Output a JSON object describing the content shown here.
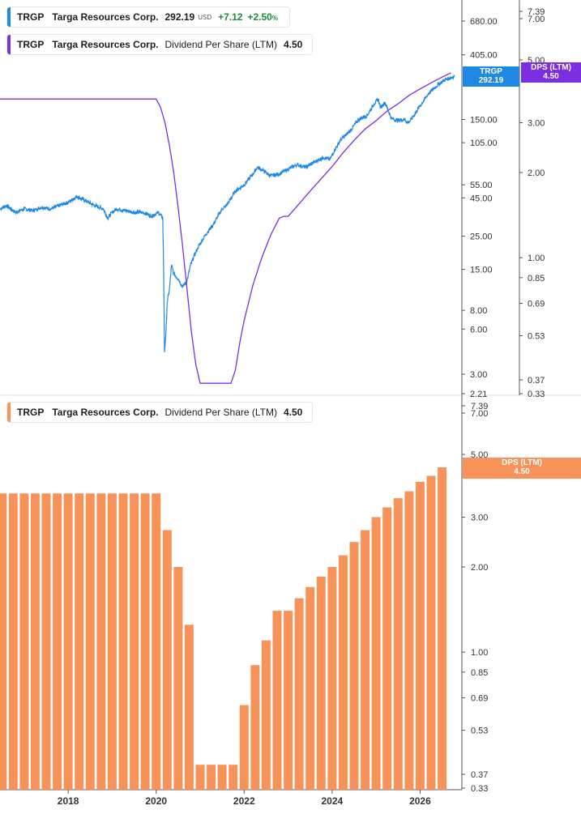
{
  "legend_top": {
    "ticker": "TRGP",
    "name": "Targa Resources Corp.",
    "price": "292.19",
    "currency": "USD",
    "change": "+7.12",
    "change_pct": "+2.50",
    "change_pct_unit": "%"
  },
  "legend_mid": {
    "ticker": "TRGP",
    "name": "Targa Resources Corp.",
    "metric": "Dividend Per Share (LTM)",
    "value": "4.50"
  },
  "legend_bottom": {
    "ticker": "TRGP",
    "name": "Targa Resources Corp.",
    "metric": "Dividend Per Share (LTM)",
    "value": "4.50"
  },
  "badges": {
    "price_label": "TRGP",
    "price_value": "292.19",
    "dps_label": "DPS (LTM)",
    "dps_value": "4.50",
    "bar_label": "DPS (LTM)",
    "bar_value": "4.50"
  },
  "colors": {
    "price": "#1e88e5",
    "dps_line": "#7b2fe0",
    "bars": "#f79259",
    "positive": "#1b8a3a"
  },
  "chart_data": [
    {
      "type": "line",
      "title": "",
      "y_scale": "log",
      "x_range": [
        2016.45,
        2026.95
      ],
      "price_axis_ticks": [
        "680.00",
        "405.00",
        "150.00",
        "105.00",
        "55.00",
        "45.00",
        "25.00",
        "15.00",
        "8.00",
        "6.00",
        "3.00",
        "2.21"
      ],
      "dps_axis_ticks": [
        "7.39",
        "7.00",
        "5.00",
        "3.00",
        "2.00",
        "1.00",
        "0.85",
        "0.69",
        "0.53",
        "0.37",
        "0.33"
      ],
      "series": [
        {
          "name": "TRGP",
          "axis": "price",
          "x": [
            2016.45,
            2016.6,
            2016.8,
            2017.0,
            2017.2,
            2017.4,
            2017.6,
            2017.8,
            2018.0,
            2018.2,
            2018.4,
            2018.6,
            2018.8,
            2018.9,
            2019.0,
            2019.1,
            2019.3,
            2019.5,
            2019.7,
            2019.9,
            2020.05,
            2020.15,
            2020.17,
            2020.19,
            2020.22,
            2020.25,
            2020.3,
            2020.35,
            2020.4,
            2020.5,
            2020.6,
            2020.7,
            2020.78,
            2020.85,
            2020.95,
            2021.1,
            2021.3,
            2021.5,
            2021.6,
            2021.8,
            2022.0,
            2022.2,
            2022.3,
            2022.45,
            2022.6,
            2022.8,
            2023.0,
            2023.2,
            2023.4,
            2023.6,
            2023.8,
            2023.95,
            2024.05,
            2024.2,
            2024.4,
            2024.6,
            2024.8,
            2024.95,
            2025.05,
            2025.1,
            2025.2,
            2025.35,
            2025.5,
            2025.65,
            2025.72,
            2025.8,
            2026.0,
            2026.2,
            2026.4,
            2026.55,
            2026.7,
            2026.78
          ],
          "values": [
            38,
            40,
            36,
            38,
            37,
            39,
            38,
            40,
            42,
            46,
            43,
            40,
            38,
            33,
            36,
            38,
            37,
            36,
            36,
            34,
            36,
            33,
            15,
            4.2,
            5.5,
            9,
            11,
            16,
            14,
            13,
            11.5,
            12.5,
            16,
            18,
            21,
            25,
            30,
            38,
            40,
            50,
            55,
            65,
            72,
            68,
            63,
            65,
            70,
            75,
            72,
            78,
            84,
            81,
            93,
            110,
            125,
            150,
            160,
            190,
            205,
            180,
            195,
            152,
            148,
            150,
            142,
            150,
            185,
            225,
            255,
            275,
            285,
            292.19
          ]
        },
        {
          "name": "DPS (LTM)",
          "axis": "dps",
          "x": [
            2016.45,
            2020.0,
            2020.1,
            2020.2,
            2020.3,
            2020.4,
            2020.5,
            2020.6,
            2020.7,
            2020.8,
            2020.9,
            2021.0,
            2021.05,
            2021.1,
            2021.5,
            2021.7,
            2021.8,
            2021.9,
            2022.0,
            2022.2,
            2022.4,
            2022.6,
            2022.8,
            2022.9,
            2023.0,
            2023.25,
            2023.5,
            2023.75,
            2024.0,
            2024.25,
            2024.5,
            2024.75,
            2025.0,
            2025.25,
            2025.5,
            2025.75,
            2026.0,
            2026.25,
            2026.5,
            2026.7
          ],
          "values": [
            3.64,
            3.64,
            3.4,
            3.0,
            2.5,
            2.0,
            1.5,
            1.1,
            0.78,
            0.55,
            0.42,
            0.36,
            0.36,
            0.36,
            0.36,
            0.36,
            0.4,
            0.5,
            0.6,
            0.8,
            1.0,
            1.2,
            1.38,
            1.4,
            1.4,
            1.55,
            1.72,
            1.9,
            2.1,
            2.35,
            2.6,
            2.85,
            3.05,
            3.3,
            3.5,
            3.75,
            3.95,
            4.15,
            4.35,
            4.5
          ]
        }
      ],
      "last_values": {
        "TRGP": "292.19",
        "DPS (LTM)": "4.50"
      }
    },
    {
      "type": "bar",
      "title": "",
      "y_scale": "log",
      "series_name": "Dividend Per Share (LTM)",
      "x_range": [
        2016.45,
        2026.95
      ],
      "x_ticks": [
        "2018",
        "2020",
        "2022",
        "2024",
        "2026"
      ],
      "y_ticks": [
        "7.39",
        "7.00",
        "5.00",
        "3.00",
        "2.00",
        "1.00",
        "0.85",
        "0.69",
        "0.53",
        "0.37",
        "0.33"
      ],
      "x": [
        2016.5,
        2016.75,
        2017.0,
        2017.25,
        2017.5,
        2017.75,
        2018.0,
        2018.25,
        2018.5,
        2018.75,
        2019.0,
        2019.25,
        2019.5,
        2019.75,
        2020.0,
        2020.25,
        2020.5,
        2020.75,
        2021.0,
        2021.25,
        2021.5,
        2021.75,
        2022.0,
        2022.25,
        2022.5,
        2022.75,
        2023.0,
        2023.25,
        2023.5,
        2023.75,
        2024.0,
        2024.25,
        2024.5,
        2024.75,
        2025.0,
        2025.25,
        2025.5,
        2025.75,
        2026.0,
        2026.25,
        2026.5
      ],
      "values": [
        3.64,
        3.64,
        3.64,
        3.64,
        3.64,
        3.64,
        3.64,
        3.64,
        3.64,
        3.64,
        3.64,
        3.64,
        3.64,
        3.64,
        3.64,
        2.7,
        2.0,
        1.25,
        0.4,
        0.4,
        0.4,
        0.4,
        0.65,
        0.9,
        1.1,
        1.4,
        1.4,
        1.55,
        1.7,
        1.85,
        2.0,
        2.2,
        2.45,
        2.7,
        3.0,
        3.25,
        3.5,
        3.7,
        4.0,
        4.2,
        4.5
      ]
    }
  ]
}
